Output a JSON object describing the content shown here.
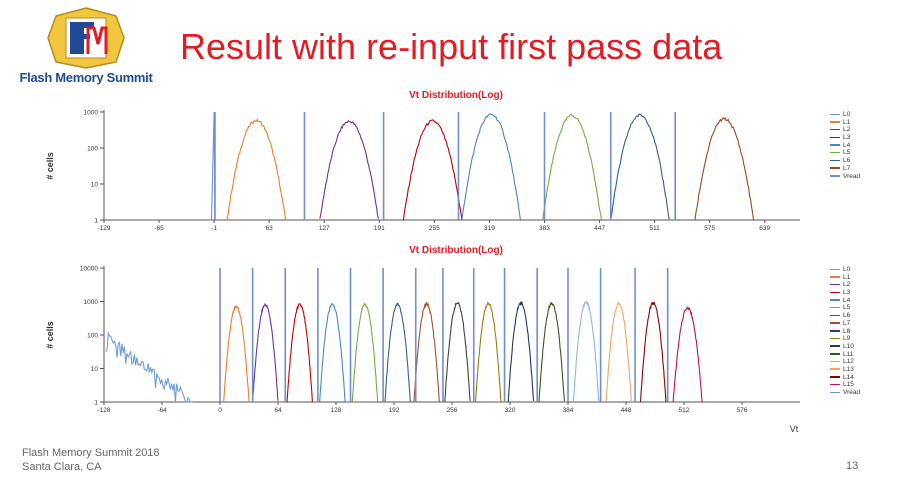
{
  "header": {
    "logo_text": "Flash Memory Summit",
    "title": "Result with re-input first pass data"
  },
  "footer": {
    "line1": "Flash Memory Summit 2018",
    "line2": "Santa Clara, CA",
    "page_number": "13"
  },
  "colors": {
    "title": "#e31b23",
    "vread": "#6f8fd0"
  },
  "chart_data": [
    {
      "type": "line",
      "title": "Vt Distribution(Log)",
      "ylabel": "# cells",
      "xlabel": "",
      "yscale": "log",
      "ylim": [
        1,
        1000
      ],
      "yticks": [
        1,
        10,
        100,
        1000
      ],
      "ytick_labels": [
        "1",
        "10",
        "100",
        "1000"
      ],
      "xlim": [
        -129,
        680
      ],
      "xticks": [
        -129,
        -65,
        -1,
        63,
        127,
        191,
        255,
        319,
        383,
        447,
        511,
        575,
        639
      ],
      "legend_position": "right",
      "series": [
        {
          "name": "L0",
          "color": "#6d8fd6",
          "kind": "spike",
          "x": -1,
          "peak": 1000,
          "width": 3
        },
        {
          "name": "L1",
          "color": "#ed7d31",
          "kind": "bell",
          "center": 48,
          "peak": 580,
          "width": 34
        },
        {
          "name": "L2",
          "color": "#7030a0",
          "kind": "bell",
          "center": 156,
          "peak": 550,
          "width": 34
        },
        {
          "name": "L3",
          "color": "#c00000",
          "kind": "bell",
          "center": 253,
          "peak": 560,
          "width": 34
        },
        {
          "name": "L4",
          "color": "#4a86c5",
          "kind": "bell",
          "center": 321,
          "peak": 850,
          "width": 34
        },
        {
          "name": "L5",
          "color": "#70ad47",
          "kind": "bell",
          "center": 415,
          "peak": 800,
          "width": 34
        },
        {
          "name": "L6",
          "color": "#2e5f99",
          "kind": "bell",
          "center": 494,
          "peak": 820,
          "width": 34
        },
        {
          "name": "L7",
          "color": "#9c4a13",
          "kind": "bell",
          "center": 592,
          "peak": 640,
          "width": 34
        },
        {
          "name": "Vread",
          "color": "#6f8fd0",
          "kind": "vlines",
          "x": [
            0,
            104,
            196,
            283,
            383,
            460,
            535
          ]
        }
      ]
    },
    {
      "type": "line",
      "title": "Vt Distribution(Log)",
      "ylabel": "# cells",
      "xlabel": "Vt",
      "yscale": "log",
      "ylim": [
        1,
        10000
      ],
      "yticks": [
        1,
        10,
        100,
        1000,
        10000
      ],
      "ytick_labels": [
        "1",
        "10",
        "100",
        "1000",
        "10000"
      ],
      "xlim": [
        -128,
        640
      ],
      "xticks": [
        -128,
        -64,
        0,
        64,
        128,
        192,
        256,
        320,
        384,
        448,
        512,
        576
      ],
      "legend_position": "right",
      "series": [
        {
          "name": "L0",
          "color": "#6d9fd6",
          "kind": "decay",
          "start": -126,
          "end": -30,
          "peak": 80
        },
        {
          "name": "L1",
          "color": "#ed7d31",
          "kind": "bell",
          "center": 18,
          "peak": 700,
          "width": 14
        },
        {
          "name": "L2",
          "color": "#7030a0",
          "kind": "bell",
          "center": 50,
          "peak": 800,
          "width": 14
        },
        {
          "name": "L3",
          "color": "#c00000",
          "kind": "bell",
          "center": 88,
          "peak": 800,
          "width": 14
        },
        {
          "name": "L4",
          "color": "#4a86c5",
          "kind": "bell",
          "center": 124,
          "peak": 820,
          "width": 14
        },
        {
          "name": "L5",
          "color": "#70ad47",
          "kind": "bell",
          "center": 160,
          "peak": 820,
          "width": 14
        },
        {
          "name": "L6",
          "color": "#2e5f99",
          "kind": "bell",
          "center": 196,
          "peak": 830,
          "width": 14
        },
        {
          "name": "L7",
          "color": "#a0522d",
          "kind": "bell",
          "center": 228,
          "peak": 830,
          "width": 14
        },
        {
          "name": "L8",
          "color": "#404040",
          "kind": "bell",
          "center": 262,
          "peak": 900,
          "width": 14
        },
        {
          "name": "L9",
          "color": "#9e7a14",
          "kind": "bell",
          "center": 296,
          "peak": 880,
          "width": 14
        },
        {
          "name": "L10",
          "color": "#1f3864",
          "kind": "bell",
          "center": 332,
          "peak": 920,
          "width": 14
        },
        {
          "name": "L11",
          "color": "#375623",
          "kind": "bell",
          "center": 366,
          "peak": 860,
          "width": 14
        },
        {
          "name": "L12",
          "color": "#8fb4e3",
          "kind": "bell",
          "center": 404,
          "peak": 950,
          "width": 14
        },
        {
          "name": "L13",
          "color": "#f4a460",
          "kind": "bell",
          "center": 440,
          "peak": 850,
          "width": 14
        },
        {
          "name": "L14",
          "color": "#8b0000",
          "kind": "bell",
          "center": 478,
          "peak": 900,
          "width": 14
        },
        {
          "name": "L15",
          "color": "#c0144c",
          "kind": "bell",
          "center": 516,
          "peak": 650,
          "width": 16
        },
        {
          "name": "Vread",
          "color": "#6f8fd0",
          "kind": "vlines",
          "x": [
            0,
            36,
            72,
            108,
            144,
            180,
            216,
            246,
            280,
            314,
            350,
            384,
            420,
            458,
            494
          ]
        }
      ]
    }
  ]
}
